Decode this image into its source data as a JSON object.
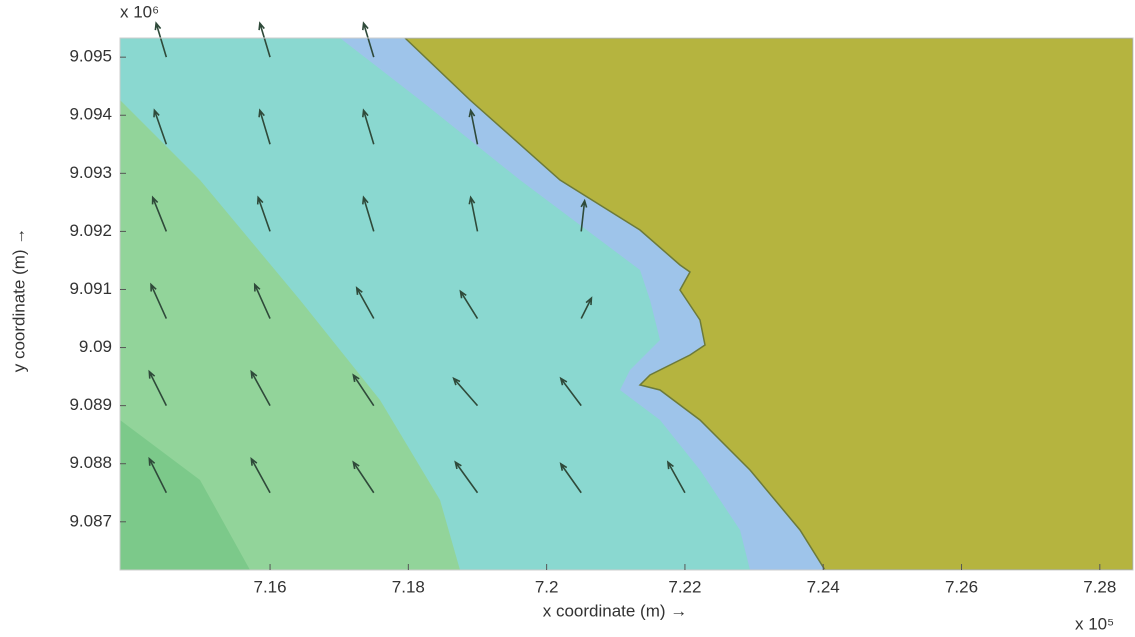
{
  "chart_data": {
    "type": "quiver",
    "xlabel": "x coordinate (m) →",
    "ylabel": "y coordinate (m) →",
    "x_multiplier": "x 10⁵",
    "y_multiplier": "x 10⁶",
    "xlim": [
      7.1383,
      7.2848
    ],
    "ylim": [
      9.08617,
      9.09533
    ],
    "xticks": [
      7.16,
      7.18,
      7.2,
      7.22,
      7.24,
      7.26,
      7.28
    ],
    "yticks": [
      9.087,
      9.088,
      9.089,
      9.09,
      9.091,
      9.092,
      9.093,
      9.094,
      9.095
    ],
    "color": "#2f4a3a",
    "x": [
      7.145,
      7.16,
      7.175,
      7.145,
      7.16,
      7.175,
      7.19,
      7.145,
      7.16,
      7.175,
      7.19,
      7.205,
      7.145,
      7.16,
      7.175,
      7.19,
      7.205,
      7.145,
      7.16,
      7.175,
      7.19,
      7.205,
      7.145,
      7.16,
      7.175,
      7.19,
      7.205,
      7.22
    ],
    "y": [
      9.095,
      9.095,
      9.095,
      9.0935,
      9.0935,
      9.0935,
      9.0935,
      9.092,
      9.092,
      9.092,
      9.092,
      9.092,
      9.0905,
      9.0905,
      9.0905,
      9.0905,
      9.0905,
      9.089,
      9.089,
      9.089,
      9.089,
      9.089,
      9.0875,
      9.0875,
      9.0875,
      9.0875,
      9.0875,
      9.0875
    ],
    "u": [
      -0.3,
      -0.3,
      -0.3,
      -0.35,
      -0.3,
      -0.3,
      -0.2,
      -0.4,
      -0.35,
      -0.3,
      -0.2,
      0.1,
      -0.45,
      -0.45,
      -0.5,
      -0.5,
      0.3,
      -0.5,
      -0.55,
      -0.6,
      -0.7,
      -0.6,
      -0.5,
      -0.55,
      -0.6,
      -0.65,
      -0.6,
      -0.5
    ],
    "v": [
      1,
      1,
      1,
      1,
      1,
      1,
      1,
      1,
      1,
      1,
      1,
      0.9,
      1,
      1,
      0.9,
      0.8,
      0.6,
      1,
      1,
      0.9,
      0.8,
      0.8,
      1,
      1,
      0.9,
      0.9,
      0.85,
      0.9
    ]
  }
}
